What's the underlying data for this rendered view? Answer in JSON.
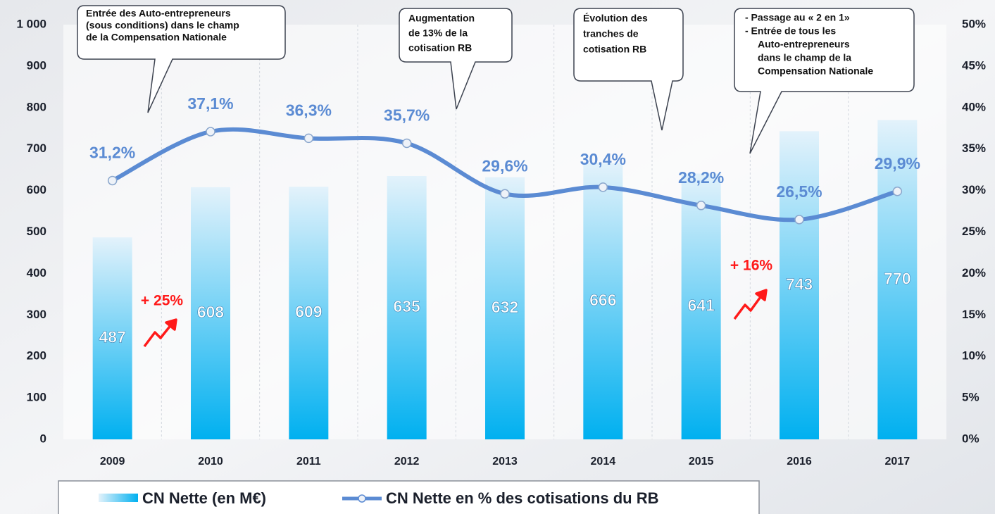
{
  "chart_data": {
    "type": "bar",
    "categories": [
      "2009",
      "2010",
      "2011",
      "2012",
      "2013",
      "2014",
      "2015",
      "2016",
      "2017"
    ],
    "series": [
      {
        "name": "CN Nette (en M€)",
        "type": "bar",
        "color": "#00b0f0",
        "values": [
          487,
          608,
          609,
          635,
          632,
          666,
          641,
          743,
          770
        ]
      },
      {
        "name": "CN Nette en % des cotisations du RB",
        "type": "line",
        "axis": "y2",
        "color": "#5b8bd3",
        "values": [
          31.2,
          37.1,
          36.3,
          35.7,
          29.6,
          30.4,
          28.2,
          26.5,
          29.9
        ],
        "value_labels": [
          "31,2%",
          "37,1%",
          "36,3%",
          "35,7%",
          "29,6%",
          "30,4%",
          "28,2%",
          "26,5%",
          "29,9%"
        ]
      }
    ],
    "ylim": [
      0,
      1000
    ],
    "yticks": [
      0,
      100,
      200,
      300,
      400,
      500,
      600,
      700,
      800,
      900,
      {
        "value": 1000,
        "label": "1 000"
      }
    ],
    "y2lim": [
      0,
      50
    ],
    "y2ticks": [
      {
        "value": 0,
        "label": "0%"
      },
      {
        "value": 5,
        "label": "5%"
      },
      {
        "value": 10,
        "label": "10%"
      },
      {
        "value": 15,
        "label": "15%"
      },
      {
        "value": 20,
        "label": "20%"
      },
      {
        "value": 25,
        "label": "25%"
      },
      {
        "value": 30,
        "label": "30%"
      },
      {
        "value": 35,
        "label": "35%"
      },
      {
        "value": 40,
        "label": "40%"
      },
      {
        "value": 45,
        "label": "45%"
      },
      {
        "value": 50,
        "label": "50%"
      }
    ],
    "callouts": [
      {
        "lines": [
          "Entrée des Auto-entrepreneurs",
          "(sous conditions) dans le champ",
          "de la Compensation Nationale"
        ]
      },
      {
        "lines": [
          "Augmentation",
          "de 13% de la",
          "cotisation RB"
        ]
      },
      {
        "lines": [
          "Évolution des",
          "tranches de",
          "cotisation RB"
        ]
      },
      {
        "lines": [
          "-   Passage au « 2 en 1»",
          "-   Entrée de tous les",
          "Auto-entrepreneurs",
          "dans le champ de la",
          "Compensation Nationale"
        ]
      }
    ],
    "growth_annotations": [
      "+ 25%",
      "+ 16%"
    ]
  }
}
